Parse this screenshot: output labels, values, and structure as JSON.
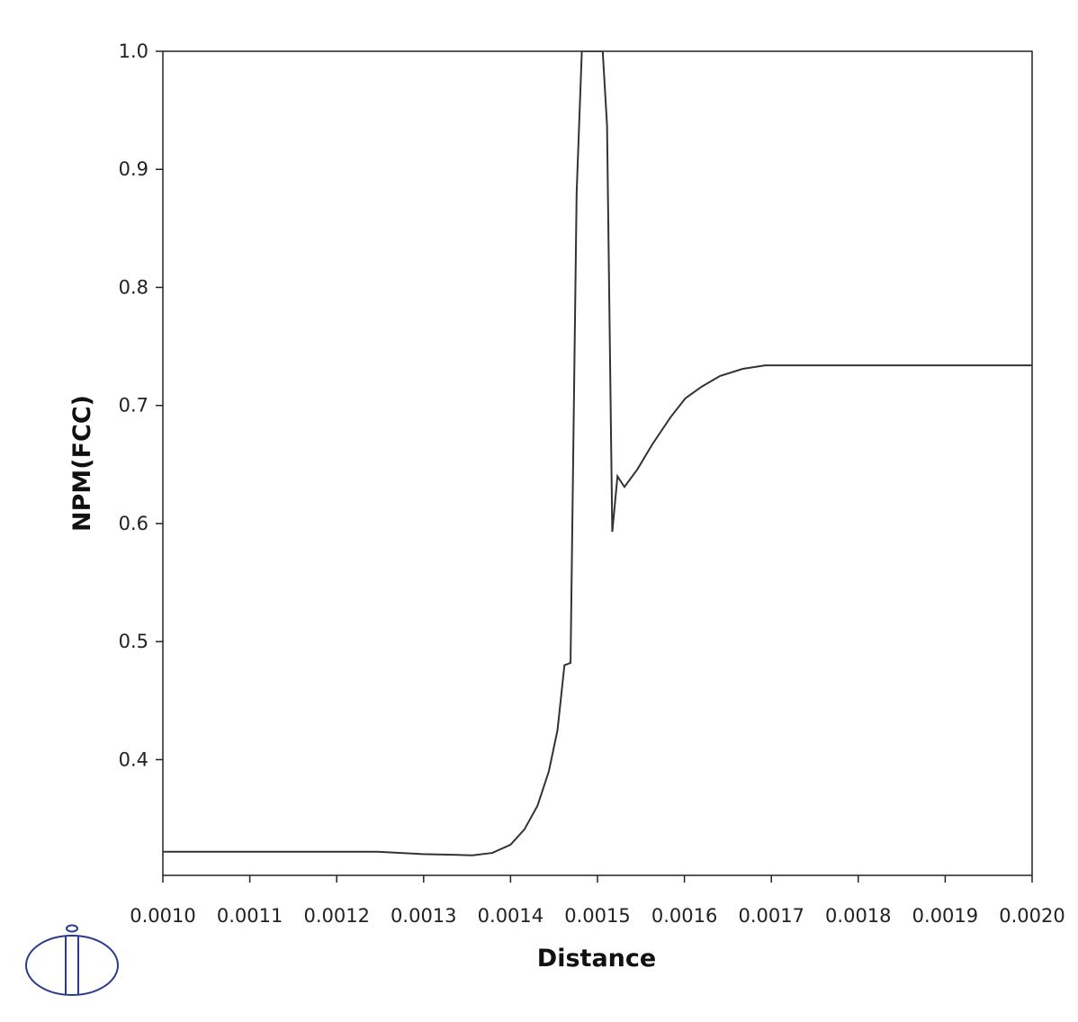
{
  "chart_data": {
    "type": "line",
    "x_label": "Distance",
    "y_label": "NPM(FCC)",
    "xlim": [
      0.001,
      0.002
    ],
    "xticks": [
      {
        "value": 0.001,
        "label": "0.0010"
      },
      {
        "value": 0.0011,
        "label": "0.0011"
      },
      {
        "value": 0.0012,
        "label": "0.0012"
      },
      {
        "value": 0.0013,
        "label": "0.0013"
      },
      {
        "value": 0.0014,
        "label": "0.0014"
      },
      {
        "value": 0.0015,
        "label": "0.0015"
      },
      {
        "value": 0.0016,
        "label": "0.0016"
      },
      {
        "value": 0.0017,
        "label": "0.0017"
      },
      {
        "value": 0.0018,
        "label": "0.0018"
      },
      {
        "value": 0.0019,
        "label": "0.0019"
      },
      {
        "value": 0.002,
        "label": "0.0020"
      }
    ],
    "ylim": [
      0.302,
      1.0
    ],
    "yticks": [
      0.4,
      0.5,
      0.6,
      0.7,
      0.8,
      0.9,
      {
        "value": 1.0,
        "label": "1.0"
      }
    ],
    "series": [
      {
        "color": "#333333",
        "x": [
          0.001,
          0.001247,
          0.001299,
          0.001356,
          0.001379,
          0.0014,
          0.001416,
          0.001431,
          0.001444,
          0.001454,
          0.001462,
          0.001469,
          0.001476,
          0.001482,
          0.001506,
          0.001511,
          0.001517,
          0.001523,
          0.001531,
          0.001546,
          0.001563,
          0.001584,
          0.001601,
          0.00162,
          0.001641,
          0.001667,
          0.001693,
          0.001744,
          0.002
        ],
        "values": [
          0.322,
          0.322,
          0.32,
          0.319,
          0.321,
          0.328,
          0.341,
          0.361,
          0.39,
          0.425,
          0.48,
          0.482,
          0.88,
          1.0,
          1.0,
          0.937,
          0.593,
          0.64,
          0.631,
          0.646,
          0.667,
          0.69,
          0.706,
          0.716,
          0.725,
          0.731,
          0.734,
          0.734,
          0.734
        ]
      }
    ]
  }
}
